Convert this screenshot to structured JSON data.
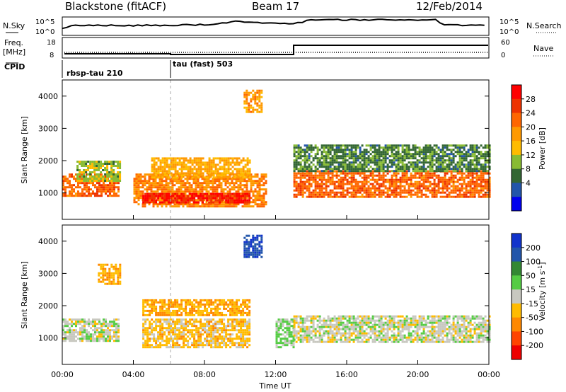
{
  "header": {
    "station": "Blackstone (fitACF)",
    "beam": "Beam 17",
    "date": "12/Feb/2014"
  },
  "noise_panel": {
    "left_label": "N.Sky",
    "right_label": "N.Search",
    "left_ticks": [
      "10^5",
      "10^0"
    ],
    "right_ticks": [
      "10^5",
      "10^0"
    ]
  },
  "freq_panel": {
    "left_label_1": "Freq.",
    "left_label_2": "[MHz]",
    "right_label": "Nave",
    "left_ticks": [
      "18",
      "8"
    ],
    "right_ticks": [
      "60",
      "0"
    ]
  },
  "cpid_panel": {
    "label": "CPID",
    "modes": [
      {
        "name": "rbsp-tau 210",
        "start_hour": 0
      },
      {
        "name": "tau (fast) 503",
        "start_hour": 6
      }
    ]
  },
  "colorbars": {
    "power": {
      "label": "Power [dB]",
      "ticks": [
        "28",
        "24",
        "20",
        "16",
        "12",
        "8",
        "4"
      ],
      "colors": [
        "#ff0000",
        "#ee3300",
        "#ff6600",
        "#ff9900",
        "#ffbb00",
        "#88bb33",
        "#336633",
        "#2255aa",
        "#0000ee"
      ]
    },
    "velocity": {
      "label_main": "Velocity [m s",
      "label_exp": "-1",
      "label_end": "]",
      "ticks": [
        "200",
        "100",
        "50",
        "15",
        "-15",
        "-50",
        "-100",
        "-200"
      ],
      "colors": [
        "#1133cc",
        "#2255aa",
        "#338833",
        "#55cc44",
        "#c8c8c0",
        "#ffbb00",
        "#ff8800",
        "#ff4400",
        "#ee0000"
      ]
    }
  },
  "axes": {
    "ylabel": "Slant Range [km]",
    "xlabel": "Time UT",
    "y_ticks": [
      "4000",
      "3000",
      "2000",
      "1000"
    ],
    "x_ticks": [
      "00:00",
      "04:00",
      "08:00",
      "12:00",
      "16:00",
      "20:00",
      "00:00"
    ]
  },
  "chart_data": {
    "type": "heatmap",
    "title": "Blackstone (fitACF) Beam 17 12/Feb/2014",
    "xlabel": "Time UT",
    "ylabel": "Slant Range [km]",
    "xlim": [
      0,
      24
    ],
    "ylim": [
      180,
      4500
    ],
    "panels": [
      {
        "name": "Power",
        "unit": "dB",
        "scale": [
          0,
          30
        ],
        "echo_regions": [
          {
            "t0": 0.0,
            "t1": 3.2,
            "r0": 900,
            "r1": 1600,
            "value": 22
          },
          {
            "t0": 0.8,
            "t1": 3.2,
            "r0": 1400,
            "r1": 2000,
            "value": 12
          },
          {
            "t0": 4.0,
            "t1": 11.5,
            "r0": 550,
            "r1": 1600,
            "value": 20
          },
          {
            "t0": 4.5,
            "t1": 10.5,
            "r0": 700,
            "r1": 1000,
            "value": 27
          },
          {
            "t0": 5.0,
            "t1": 10.5,
            "r0": 1500,
            "r1": 2100,
            "value": 17
          },
          {
            "t0": 10.2,
            "t1": 11.2,
            "r0": 3500,
            "r1": 4200,
            "value": 18
          },
          {
            "t0": 13.0,
            "t1": 24.0,
            "r0": 900,
            "r1": 1700,
            "value": 22
          },
          {
            "t0": 13.0,
            "t1": 24.0,
            "r0": 1700,
            "r1": 2500,
            "value": 9
          }
        ]
      },
      {
        "name": "Velocity",
        "unit": "m s-1",
        "scale": [
          -200,
          200
        ],
        "echo_regions": [
          {
            "t0": 0.0,
            "t1": 3.2,
            "r0": 900,
            "r1": 1600,
            "value": 0
          },
          {
            "t0": 2.0,
            "t1": 3.2,
            "r0": 2700,
            "r1": 3300,
            "value": -60
          },
          {
            "t0": 4.5,
            "t1": 10.5,
            "r0": 700,
            "r1": 1600,
            "value": -40
          },
          {
            "t0": 4.5,
            "t1": 10.5,
            "r0": 1700,
            "r1": 2200,
            "value": -60
          },
          {
            "t0": 10.2,
            "t1": 11.2,
            "r0": 3500,
            "r1": 4200,
            "value": 150
          },
          {
            "t0": 12.0,
            "t1": 13.0,
            "r0": 700,
            "r1": 1600,
            "value": 30
          },
          {
            "t0": 13.0,
            "t1": 24.0,
            "r0": 900,
            "r1": 1700,
            "value": 0
          }
        ]
      }
    ],
    "cpid_modes": [
      "rbsp-tau 210",
      "tau (fast) 503"
    ]
  }
}
